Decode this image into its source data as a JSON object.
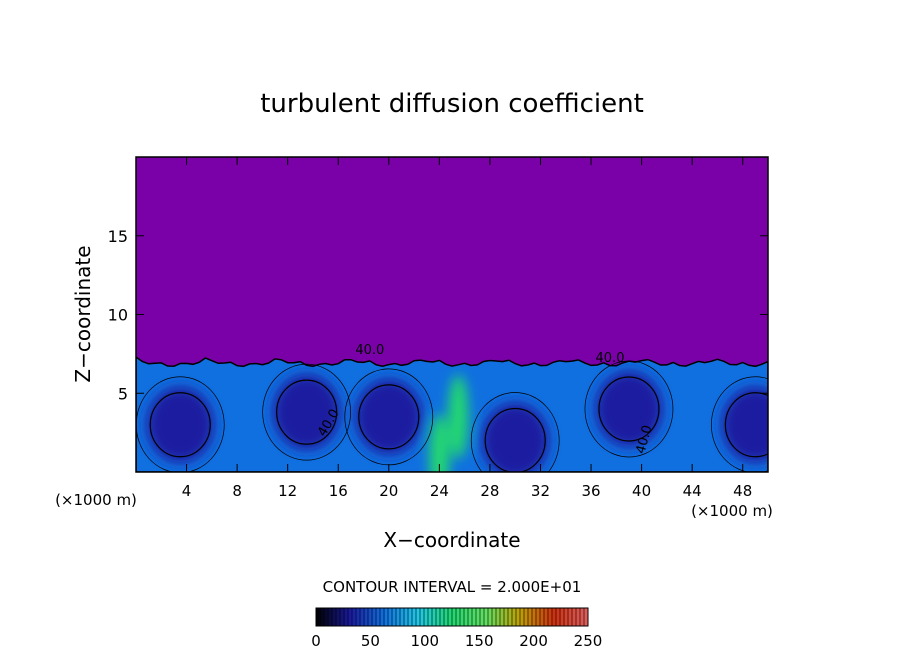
{
  "chart_data": {
    "type": "heatmap",
    "title": "turbulent diffusion coefficient",
    "xlabel": "X−coordinate",
    "ylabel": "Z−coordinate",
    "x_unit": "(×1000 m)",
    "xlim": [
      0,
      50
    ],
    "ylim": [
      0,
      20
    ],
    "x_ticks": [
      4,
      8,
      12,
      16,
      20,
      24,
      28,
      32,
      36,
      40,
      44,
      48
    ],
    "x_tick_labels": [
      "4",
      "8",
      "12",
      "16",
      "20",
      "24",
      "28",
      "32",
      "36",
      "40",
      "44",
      "48"
    ],
    "y_ticks": [
      5,
      10,
      15
    ],
    "y_tick_labels": [
      "5",
      "10",
      "15"
    ],
    "contour_interval_text": "CONTOUR INTERVAL = 2.000E+01",
    "contour_labels": [
      "40.0",
      "40.0",
      "40.0",
      "40.0"
    ],
    "colorbar": {
      "min": 0,
      "max": 250,
      "tick_labels": [
        "0",
        "50",
        "100",
        "150",
        "200",
        "250"
      ],
      "colors": [
        "#000000",
        "#1a1aa0",
        "#1070e0",
        "#20c8e8",
        "#20d870",
        "#60e060",
        "#c0a000",
        "#d03010",
        "#e06060"
      ]
    },
    "background_color": "#7a00a8",
    "boundary_layer_top_km": 7.3,
    "cells": [
      {
        "x": 3.5,
        "z": 3.0,
        "value": 35
      },
      {
        "x": 13.5,
        "z": 3.8,
        "value": 30
      },
      {
        "x": 20.0,
        "z": 3.5,
        "value": 35
      },
      {
        "x": 30.0,
        "z": 2.0,
        "value": 30
      },
      {
        "x": 39.0,
        "z": 4.0,
        "value": 25
      },
      {
        "x": 49.0,
        "z": 3.0,
        "value": 30
      },
      {
        "x": 25.5,
        "z": 3.5,
        "value": 120
      },
      {
        "x": 24.0,
        "z": 1.0,
        "value": 110
      }
    ]
  }
}
